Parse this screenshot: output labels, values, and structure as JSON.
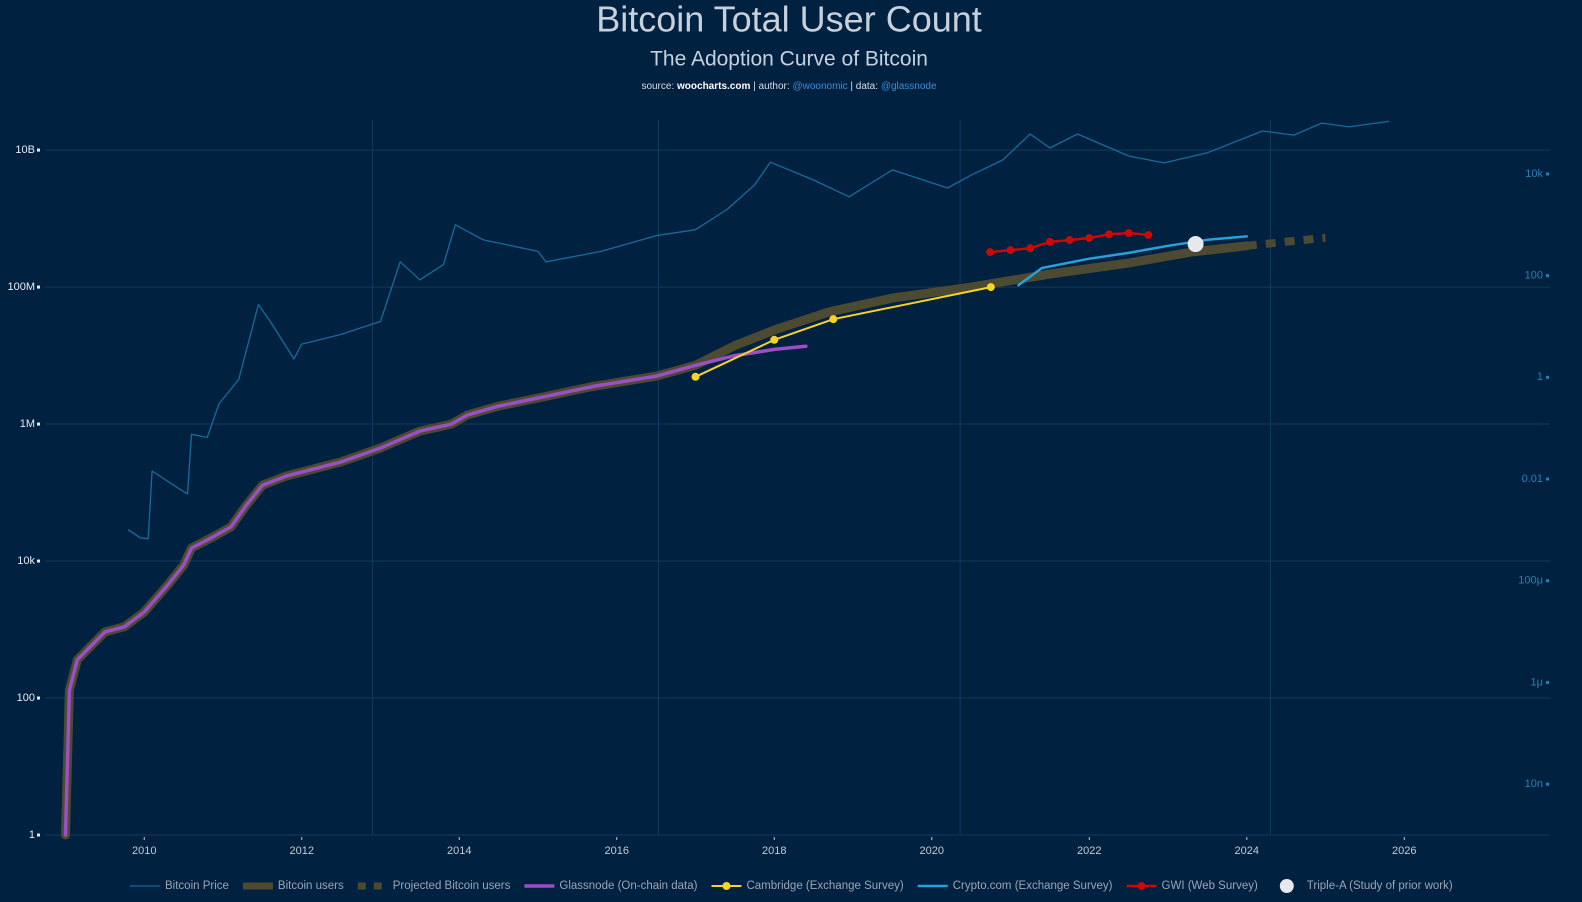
{
  "chart_data": {
    "type": "line",
    "title": "Bitcoin Total User Count",
    "subtitle": "The Adoption Curve of Bitcoin",
    "source_line": {
      "source_label": "source:",
      "source": "woocharts.com",
      "author_label": "| author:",
      "author": "@woonomic",
      "data_label": "| data:",
      "data": "@glassnode"
    },
    "xlim": [
      2008.74,
      2027.85
    ],
    "xticks": [
      2010,
      2012,
      2014,
      2016,
      2018,
      2020,
      2022,
      2024,
      2026
    ],
    "ylim": [
      1,
      27500000000
    ],
    "yticks": [
      1,
      100,
      {
        "value": 10000,
        "label": "10k"
      },
      {
        "value": 1000000,
        "label": "1M"
      },
      {
        "value": 100000000,
        "label": "100M"
      },
      {
        "value": 10000000000,
        "label": "10B"
      }
    ],
    "y2lim": [
      1e-09,
      115000
    ],
    "y2ticks": [
      {
        "value": 1e-08,
        "label": "10n"
      },
      {
        "value": 1e-06,
        "label": "1μ"
      },
      {
        "value": 0.0001,
        "label": "100μ"
      },
      0.01,
      1,
      100,
      {
        "value": 10000,
        "label": "10k"
      }
    ],
    "log_scale": true,
    "grid": true,
    "halvings": [
      2012.9,
      2016.53,
      2020.36,
      2024.3
    ],
    "legend": "bottom",
    "series": [
      {
        "name": "Bitcoin Price",
        "color": "#1a6a9a",
        "axis": "y2",
        "line_width": 1.3,
        "x": [
          2009.8,
          2009.95,
          2010.05,
          2010.1,
          2010.4,
          2010.55,
          2010.6,
          2010.8,
          2010.95,
          2011.2,
          2011.45,
          2011.6,
          2011.9,
          2012.0,
          2012.5,
          2013.0,
          2013.25,
          2013.5,
          2013.8,
          2013.95,
          2014.3,
          2015.0,
          2015.1,
          2015.8,
          2016.5,
          2017.0,
          2017.4,
          2017.75,
          2017.95,
          2018.5,
          2018.95,
          2019.5,
          2020.2,
          2020.5,
          2020.9,
          2021.25,
          2021.5,
          2021.85,
          2022.5,
          2022.95,
          2023.5,
          2024.2,
          2024.6,
          2024.95,
          2025.3,
          2025.8
        ],
        "values": [
          0.001,
          0.0007,
          0.00067,
          0.0144,
          0.0071,
          0.0051,
          0.076,
          0.066,
          0.3,
          0.91,
          27,
          12.6,
          2.3,
          4.5,
          7,
          12.6,
          187,
          83,
          165,
          1000,
          510,
          300,
          187,
          300,
          610,
          800,
          2000,
          6100,
          17000,
          7600,
          3550,
          12000,
          5300,
          9500,
          18800,
          61000,
          32400,
          61000,
          22500,
          16500,
          26000,
          70000,
          58000,
          100000,
          84000,
          108000
        ]
      },
      {
        "name": "Bitcoin users",
        "color": "#4d4a32",
        "line_width": 9,
        "x": [
          2009.0,
          2009.05,
          2009.15,
          2009.3,
          2009.5,
          2009.75,
          2010.0,
          2010.3,
          2010.5,
          2010.6,
          2010.85,
          2011.1,
          2011.3,
          2011.5,
          2011.8,
          2012.5,
          2013.0,
          2013.3,
          2013.5,
          2013.9,
          2014.1,
          2014.5,
          2015.0,
          2015.7,
          2016.5,
          2017.0,
          2017.5,
          2018.0,
          2018.7,
          2019.5,
          2020.5,
          2021.5,
          2022.5,
          2023.3,
          2024.0
        ],
        "values": [
          1,
          130,
          360,
          540,
          920,
          1100,
          1800,
          4500,
          8700,
          15500,
          21800,
          31500,
          66000,
          128000,
          174000,
          280000,
          447000,
          630000,
          790000,
          1000000,
          1350000,
          1830000,
          2400000,
          3550000,
          5000000,
          7200000,
          14000000,
          23600000,
          43500000,
          69000000,
          100000000,
          155000000,
          225000000,
          325000000,
          400000000
        ]
      },
      {
        "name": "Projected Bitcoin users",
        "color": "#4d4a32",
        "line_width": 8,
        "dash": "10,9",
        "x": [
          2024.0,
          2025.0
        ],
        "values": [
          400000000,
          525000000
        ]
      },
      {
        "name": "Glassnode (On-chain data)",
        "color": "#9b4fc4",
        "line_width": 3.5,
        "x": [
          2009.0,
          2009.05,
          2009.15,
          2009.3,
          2009.5,
          2009.75,
          2010.0,
          2010.3,
          2010.5,
          2010.6,
          2010.85,
          2011.1,
          2011.3,
          2011.5,
          2011.8,
          2012.5,
          2013.0,
          2013.3,
          2013.5,
          2013.9,
          2014.1,
          2014.5,
          2015.0,
          2015.7,
          2016.5,
          2017.0,
          2017.5,
          2018.0,
          2018.4
        ],
        "values": [
          1,
          130,
          360,
          540,
          920,
          1100,
          1800,
          4500,
          8700,
          15500,
          21800,
          31500,
          66000,
          128000,
          174000,
          280000,
          447000,
          630000,
          790000,
          1000000,
          1350000,
          1830000,
          2400000,
          3550000,
          5000000,
          7200000,
          10000000,
          12300000,
          13700000
        ]
      },
      {
        "name": "Cambridge (Exchange Survey)",
        "color": "#f5d327",
        "line_width": 2,
        "markers": true,
        "marker_size": 4,
        "x": [
          2017.0,
          2018.0,
          2018.75,
          2020.75
        ],
        "values": [
          4900000,
          17000000,
          34000000,
          100000000
        ]
      },
      {
        "name": "Crypto.com (Exchange Survey)",
        "color": "#2aa0d8",
        "line_width": 2.5,
        "x": [
          2021.1,
          2021.4,
          2022.0,
          2022.5,
          2023.0,
          2023.5,
          2024.0
        ],
        "values": [
          106000000,
          190000000,
          260000000,
          315000000,
          400000000,
          490000000,
          550000000
        ]
      },
      {
        "name": "GWI (Web Survey)",
        "color": "#c80a0a",
        "line_width": 2.5,
        "markers": true,
        "marker_size": 4,
        "x": [
          2020.74,
          2021.0,
          2021.25,
          2021.5,
          2021.75,
          2022.0,
          2022.25,
          2022.5,
          2022.75
        ],
        "values": [
          324000000,
          347000000,
          370000000,
          457000000,
          485000000,
          520000000,
          590000000,
          615000000,
          575000000
        ]
      },
      {
        "name": "Triple-A (Study of prior work)",
        "color": "#e6e8ee",
        "line_width": 0,
        "markers": true,
        "marker_size": 8,
        "x": [
          2023.35
        ],
        "values": [
          425000000
        ]
      }
    ]
  }
}
